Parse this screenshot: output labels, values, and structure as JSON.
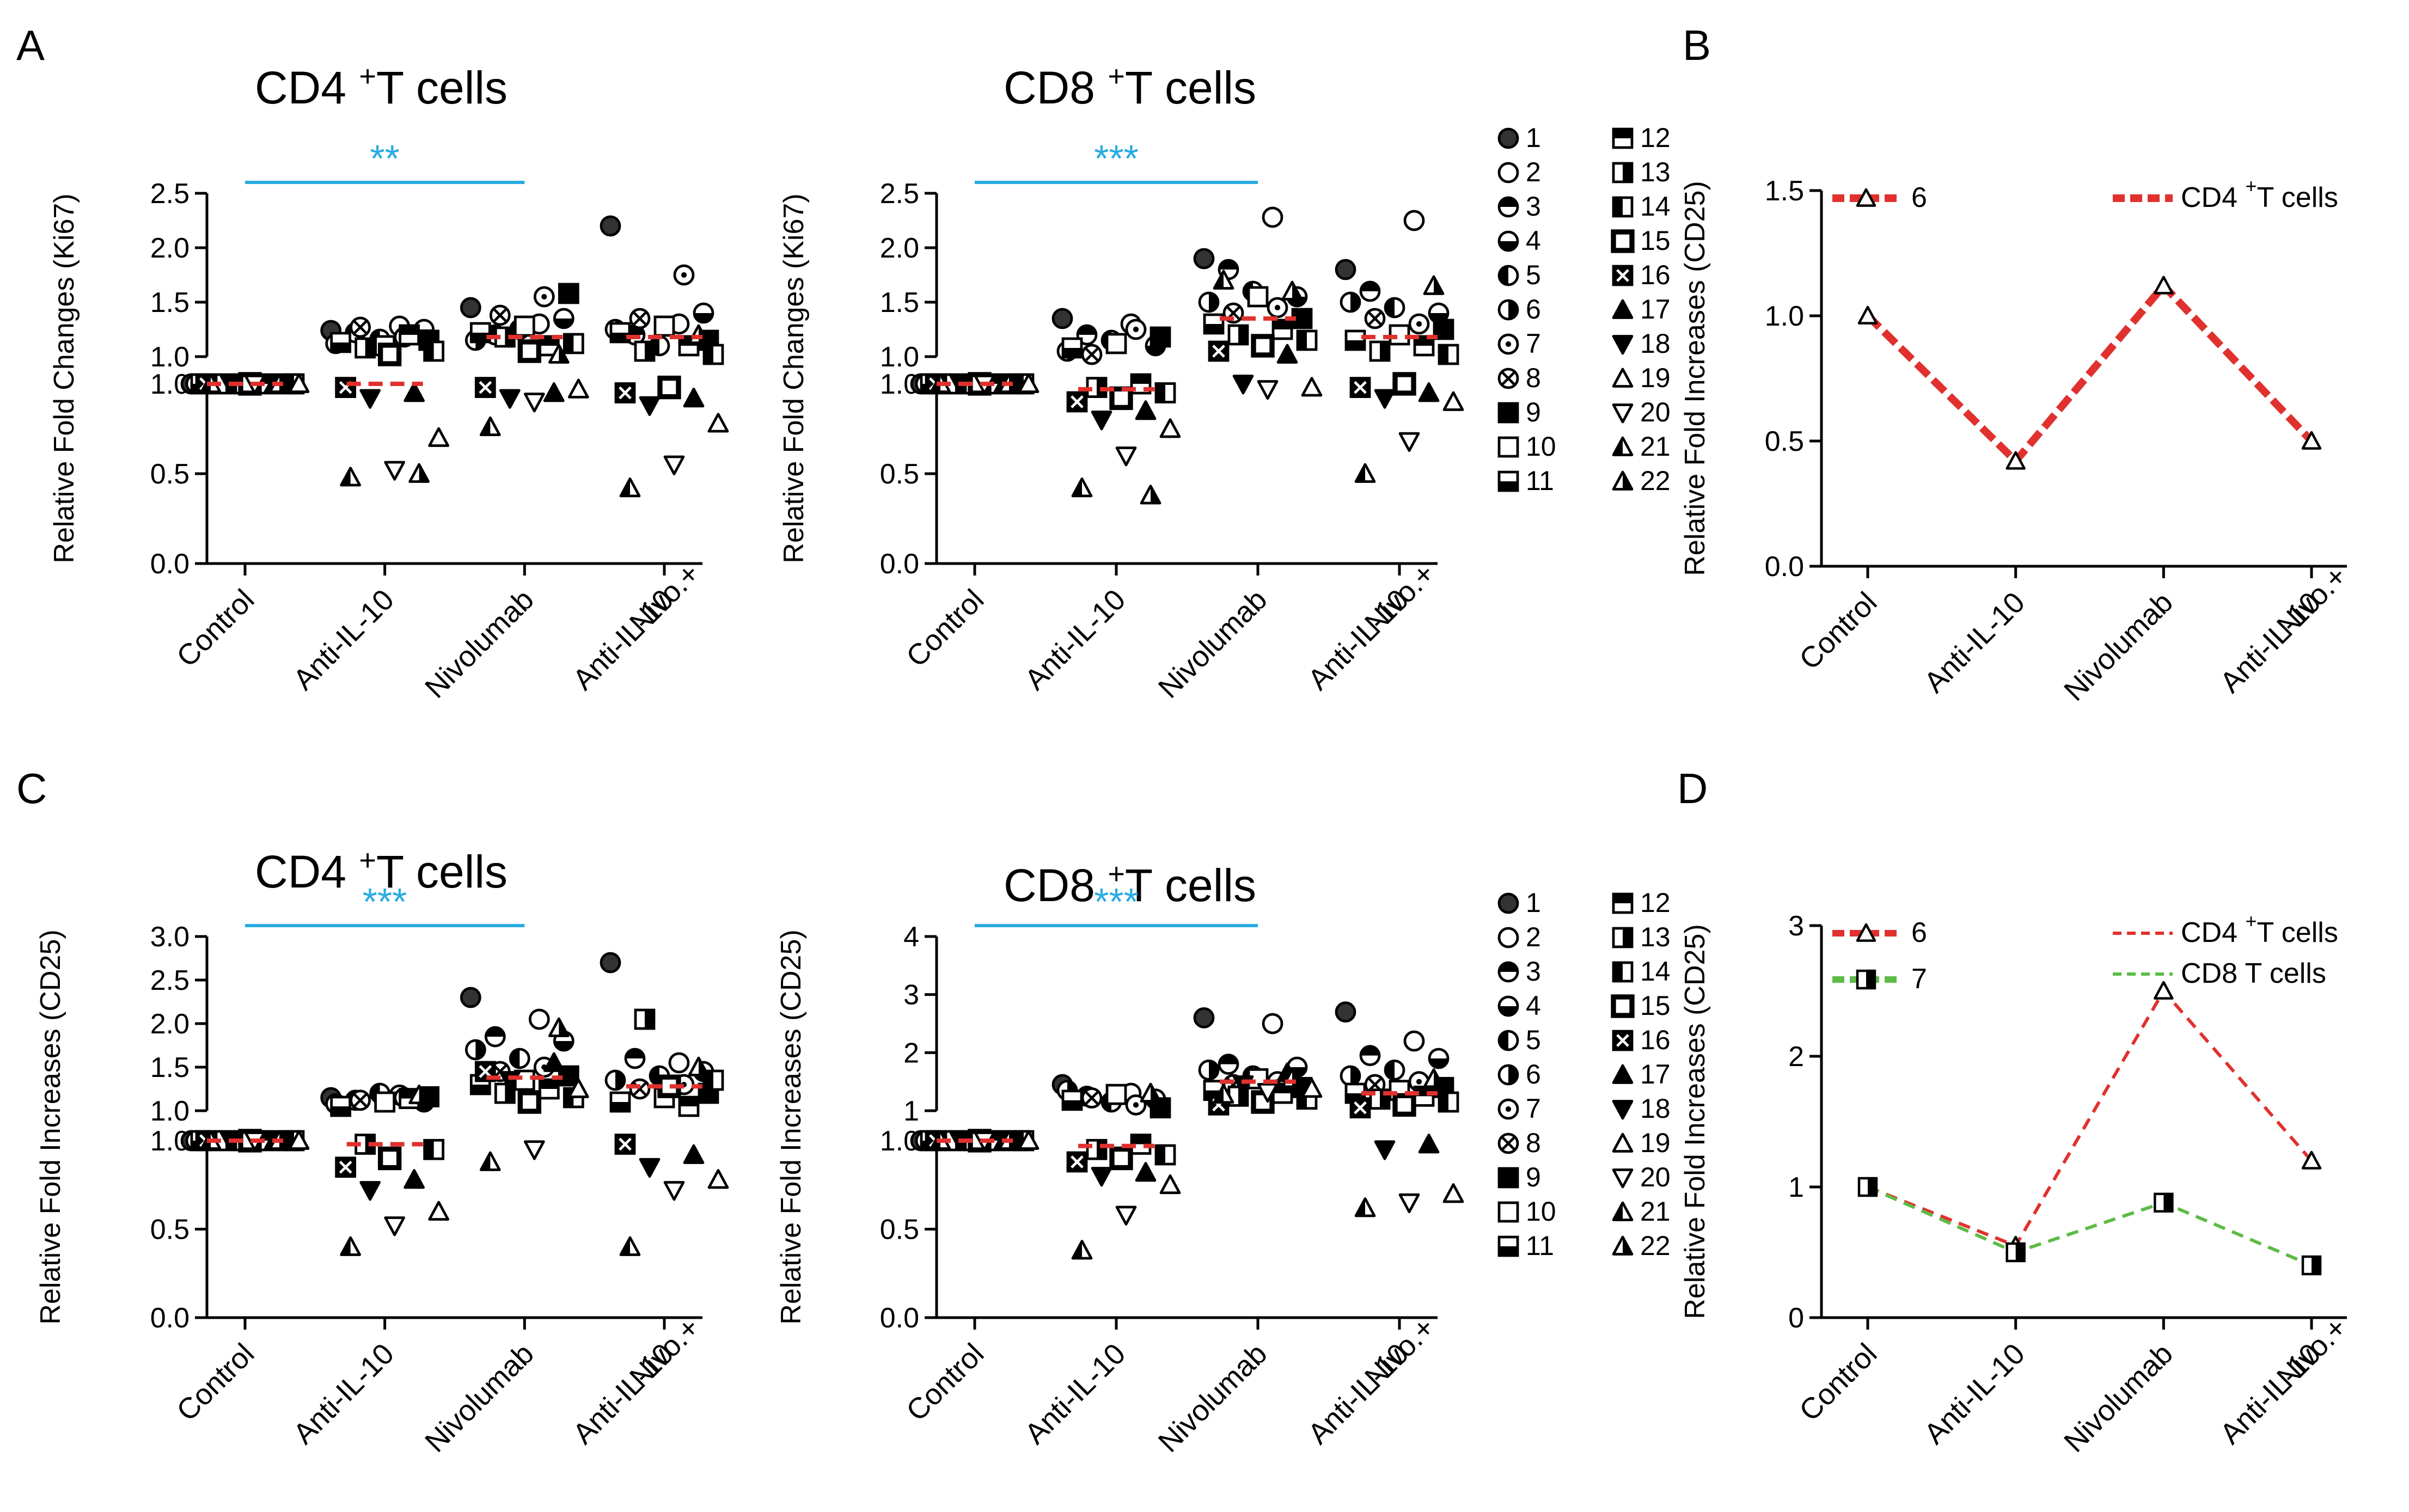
{
  "colors": {
    "significance": "#29abe2",
    "median": "#e0312e",
    "cd4_line": "#e0312e",
    "cd8_line": "#5dbb46",
    "ink": "#000000"
  },
  "legend_items": [
    {
      "n": "1",
      "sym": "filled-circle"
    },
    {
      "n": "2",
      "sym": "open-circle"
    },
    {
      "n": "3",
      "sym": "top-half-circle"
    },
    {
      "n": "4",
      "sym": "bottom-half-circle"
    },
    {
      "n": "5",
      "sym": "left-half-circle"
    },
    {
      "n": "6",
      "sym": "right-half-circle"
    },
    {
      "n": "7",
      "sym": "dot-circle"
    },
    {
      "n": "8",
      "sym": "cross-circle"
    },
    {
      "n": "9",
      "sym": "filled-square"
    },
    {
      "n": "10",
      "sym": "open-square"
    },
    {
      "n": "11",
      "sym": "bottom-half-square"
    },
    {
      "n": "12",
      "sym": "top-half-square"
    },
    {
      "n": "13",
      "sym": "right-half-square"
    },
    {
      "n": "14",
      "sym": "left-half-square"
    },
    {
      "n": "15",
      "sym": "thick-square"
    },
    {
      "n": "16",
      "sym": "cross-square"
    },
    {
      "n": "17",
      "sym": "filled-triangle"
    },
    {
      "n": "18",
      "sym": "filled-down-triangle"
    },
    {
      "n": "19",
      "sym": "open-triangle"
    },
    {
      "n": "20",
      "sym": "open-down-triangle"
    },
    {
      "n": "21",
      "sym": "left-half-triangle"
    },
    {
      "n": "22",
      "sym": "right-half-triangle"
    }
  ],
  "chart_data": [
    {
      "id": "A-CD4",
      "panel_label": "A",
      "type": "scatter",
      "title": "CD4",
      "title_sup": "+",
      "title_rest": "T cells",
      "ylabel": "Relative Fold Changes (Ki67)",
      "categories": [
        "Control",
        "Anti-IL-10",
        "Nivolumab",
        "Nivo.+\nAnti-IL-10"
      ],
      "ylim": [
        0,
        2.5
      ],
      "y_break": 1.0,
      "y_ticks_lower": [
        "0.0",
        "0.5",
        "1.0"
      ],
      "y_ticks_upper": [
        "1.0",
        "1.5",
        "2.0",
        "2.5"
      ],
      "medians": [
        1.0,
        1.0,
        1.18,
        1.18
      ],
      "significance": {
        "from": "Control",
        "to": "Nivolumab",
        "label": "**"
      },
      "points": [
        [
          1.0,
          1.0,
          1.0,
          1.0,
          1.0,
          1.0,
          1.0,
          1.0,
          1.0,
          1.0,
          1.0,
          1.0,
          1.0,
          1.0,
          1.0,
          1.0,
          1.0,
          1.0,
          1.0,
          1.0,
          1.0,
          1.0
        ],
        [
          1.24,
          1.28,
          1.22,
          1.25,
          1.16,
          1.12,
          1.18,
          1.27,
          1.15,
          1.1,
          1.13,
          1.2,
          1.08,
          1.05,
          1.02,
          0.98,
          0.95,
          0.92,
          0.7,
          0.52,
          0.48,
          0.5
        ],
        [
          1.45,
          1.3,
          1.2,
          1.35,
          1.25,
          1.15,
          1.55,
          1.38,
          1.58,
          1.28,
          1.22,
          1.1,
          1.18,
          1.12,
          1.05,
          0.98,
          0.95,
          0.92,
          0.97,
          0.9,
          0.76,
          1.02
        ],
        [
          2.2,
          1.3,
          1.2,
          1.4,
          1.1,
          1.25,
          1.75,
          1.35,
          1.15,
          1.28,
          1.22,
          1.1,
          1.05,
          1.02,
          0.98,
          0.95,
          0.92,
          0.88,
          0.78,
          0.55,
          0.42,
          1.2
        ]
      ]
    },
    {
      "id": "A-CD8",
      "panel_label": "",
      "type": "scatter",
      "title": "CD8",
      "title_sup": "+",
      "title_rest": "T cells",
      "ylabel": "Relative Fold Changes (Ki67)",
      "categories": [
        "Control",
        "Anti-IL-10",
        "Nivolumab",
        "Nivo.+\nAnti-IL-10"
      ],
      "ylim": [
        0,
        2.5
      ],
      "y_break": 1.0,
      "y_ticks_lower": [
        "0.0",
        "0.5",
        "1.0"
      ],
      "y_ticks_upper": [
        "1.0",
        "1.5",
        "2.0",
        "2.5"
      ],
      "medians": [
        1.0,
        0.97,
        1.35,
        1.18
      ],
      "significance": {
        "from": "Control",
        "to": "Nivolumab",
        "label": "***"
      },
      "points": [
        [
          1.0,
          1.0,
          1.0,
          1.0,
          1.0,
          1.0,
          1.0,
          1.0,
          1.0,
          1.0,
          1.0,
          1.0,
          1.0,
          1.0,
          1.0,
          1.0,
          1.0,
          1.0,
          1.0,
          1.0,
          1.0,
          1.0
        ],
        [
          1.35,
          1.3,
          1.2,
          1.1,
          1.15,
          1.05,
          1.25,
          1.02,
          1.18,
          1.12,
          1.08,
          1.0,
          0.98,
          0.95,
          0.92,
          0.9,
          0.85,
          0.8,
          0.75,
          0.6,
          0.42,
          0.38
        ],
        [
          1.9,
          2.28,
          1.8,
          1.55,
          1.6,
          1.5,
          1.45,
          1.4,
          1.35,
          1.55,
          1.3,
          1.25,
          1.2,
          1.15,
          1.1,
          1.05,
          1.02,
          1.0,
          0.98,
          0.97,
          1.7,
          1.6
        ],
        [
          1.8,
          2.25,
          1.6,
          1.4,
          1.45,
          1.5,
          1.3,
          1.35,
          1.25,
          1.2,
          1.15,
          1.1,
          1.05,
          1.02,
          1.0,
          0.98,
          0.95,
          0.92,
          0.9,
          0.68,
          0.5,
          1.65
        ]
      ]
    },
    {
      "id": "C-CD4",
      "panel_label": "C",
      "type": "scatter",
      "title": "CD4",
      "title_sup": "+",
      "title_rest": "T cells",
      "ylabel": "Relative Fold Increases (CD25)",
      "categories": [
        "Control",
        "Anti-IL-10",
        "Nivolumab",
        "Nivo.+\nAnti-IL-10"
      ],
      "ylim": [
        0,
        3.0
      ],
      "y_break": 1.0,
      "y_ticks_lower": [
        "0.0",
        "0.5",
        "1.0"
      ],
      "y_ticks_upper": [
        "1.0",
        "1.5",
        "2.0",
        "2.5",
        "3.0"
      ],
      "medians": [
        1.0,
        0.98,
        1.38,
        1.28
      ],
      "significance": {
        "from": "Control",
        "to": "Nivolumab",
        "label": "***"
      },
      "points": [
        [
          1.0,
          1.0,
          1.0,
          1.0,
          1.0,
          1.0,
          1.0,
          1.0,
          1.0,
          1.0,
          1.0,
          1.0,
          1.0,
          1.0,
          1.0,
          1.0,
          1.0,
          1.0,
          1.0,
          1.0,
          1.0,
          1.0
        ],
        [
          1.15,
          1.18,
          1.12,
          1.1,
          1.2,
          1.08,
          1.15,
          1.12,
          1.16,
          1.1,
          1.05,
          1.14,
          0.98,
          0.95,
          0.9,
          0.85,
          0.78,
          0.72,
          0.6,
          0.52,
          0.4,
          1.18
        ],
        [
          2.3,
          2.05,
          1.85,
          1.8,
          1.6,
          1.7,
          1.5,
          1.45,
          1.4,
          1.35,
          1.3,
          1.25,
          1.2,
          1.15,
          1.1,
          1.45,
          1.55,
          1.35,
          1.25,
          0.95,
          0.88,
          1.95
        ],
        [
          2.7,
          1.55,
          1.6,
          1.45,
          1.4,
          1.35,
          1.3,
          1.25,
          1.2,
          1.15,
          1.1,
          1.05,
          2.05,
          1.35,
          1.28,
          0.98,
          0.92,
          0.85,
          0.78,
          0.72,
          0.4,
          1.5
        ]
      ]
    },
    {
      "id": "C-CD8",
      "panel_label": "",
      "type": "scatter",
      "title": "CD8",
      "title_sup": "+",
      "title_rest": "T cells",
      "ylabel": "Relative Fold Increases (CD25)",
      "categories": [
        "Control",
        "Anti-IL-10",
        "Nivolumab",
        "Nivo.+\nAnti-IL-10"
      ],
      "ylim": [
        0,
        4
      ],
      "y_break": 1.0,
      "y_ticks_lower": [
        "0.0",
        "0.5",
        "1.0"
      ],
      "y_ticks_upper": [
        "1",
        "2",
        "3",
        "4"
      ],
      "medians": [
        1.0,
        0.97,
        1.5,
        1.3
      ],
      "significance": {
        "from": "Control",
        "to": "Nivolumab",
        "label": "***"
      },
      "points": [
        [
          1.0,
          1.0,
          1.0,
          1.0,
          1.0,
          1.0,
          1.0,
          1.0,
          1.0,
          1.0,
          1.0,
          1.0,
          1.0,
          1.0,
          1.0,
          1.0,
          1.0,
          1.0,
          1.0,
          1.0,
          1.0,
          1.0
        ],
        [
          1.45,
          1.3,
          1.25,
          1.2,
          1.15,
          1.35,
          1.1,
          1.22,
          1.05,
          1.28,
          1.18,
          0.98,
          0.95,
          0.92,
          0.9,
          0.88,
          0.82,
          0.8,
          0.75,
          0.58,
          0.38,
          1.3
        ],
        [
          2.6,
          2.5,
          1.8,
          1.75,
          1.6,
          1.7,
          1.5,
          1.45,
          1.4,
          1.55,
          1.35,
          1.3,
          1.25,
          1.2,
          1.15,
          1.1,
          1.65,
          1.45,
          1.38,
          1.32,
          1.28,
          1.55
        ],
        [
          2.7,
          2.2,
          1.95,
          1.9,
          1.7,
          1.6,
          1.5,
          1.45,
          1.4,
          1.35,
          1.3,
          1.25,
          1.2,
          1.15,
          1.1,
          1.05,
          0.98,
          0.95,
          0.7,
          0.65,
          0.62,
          1.55
        ]
      ]
    },
    {
      "id": "B",
      "panel_label": "B",
      "type": "line",
      "ylabel": "Relative Fold Increases (CD25)",
      "categories": [
        "Control",
        "Anti-IL-10",
        "Nivolumab",
        "Nivo.+\nAnti-IL-10"
      ],
      "ylim": [
        0,
        1.5
      ],
      "y_ticks": [
        "0.0",
        "0.5",
        "1.0",
        "1.5"
      ],
      "series": [
        {
          "name": "6",
          "legend_label": "CD4 +T cells",
          "legend_main": "CD4",
          "legend_sup": "+",
          "legend_rest": "T cells",
          "color": "#e0312e",
          "style": "thick-dash",
          "marker": "open-triangle",
          "values": [
            1.0,
            0.42,
            1.12,
            0.5
          ]
        }
      ]
    },
    {
      "id": "D",
      "panel_label": "D",
      "type": "line",
      "ylabel": "Relative Fold Increases (CD25)",
      "categories": [
        "Control",
        "Anti-IL-10",
        "Nivolumab",
        "Nivo.+\nAnti-IL-10"
      ],
      "ylim": [
        0,
        3
      ],
      "y_ticks": [
        "0",
        "1",
        "2",
        "3"
      ],
      "series": [
        {
          "name": "6",
          "legend_label": "CD4 +T cells",
          "legend_main": "CD4",
          "legend_sup": "+",
          "legend_rest": "T cells",
          "color": "#e0312e",
          "style": "thin-dash",
          "marker": "open-triangle",
          "values": [
            1.0,
            0.55,
            2.5,
            1.2
          ]
        },
        {
          "name": "7",
          "legend_label": "CD8 T cells",
          "legend_main": "CD8",
          "legend_sup": "",
          "legend_rest": "T cells",
          "color": "#5dbb46",
          "style": "thin-dash",
          "marker": "right-half-square",
          "values": [
            1.0,
            0.5,
            0.88,
            0.4
          ]
        }
      ]
    }
  ]
}
